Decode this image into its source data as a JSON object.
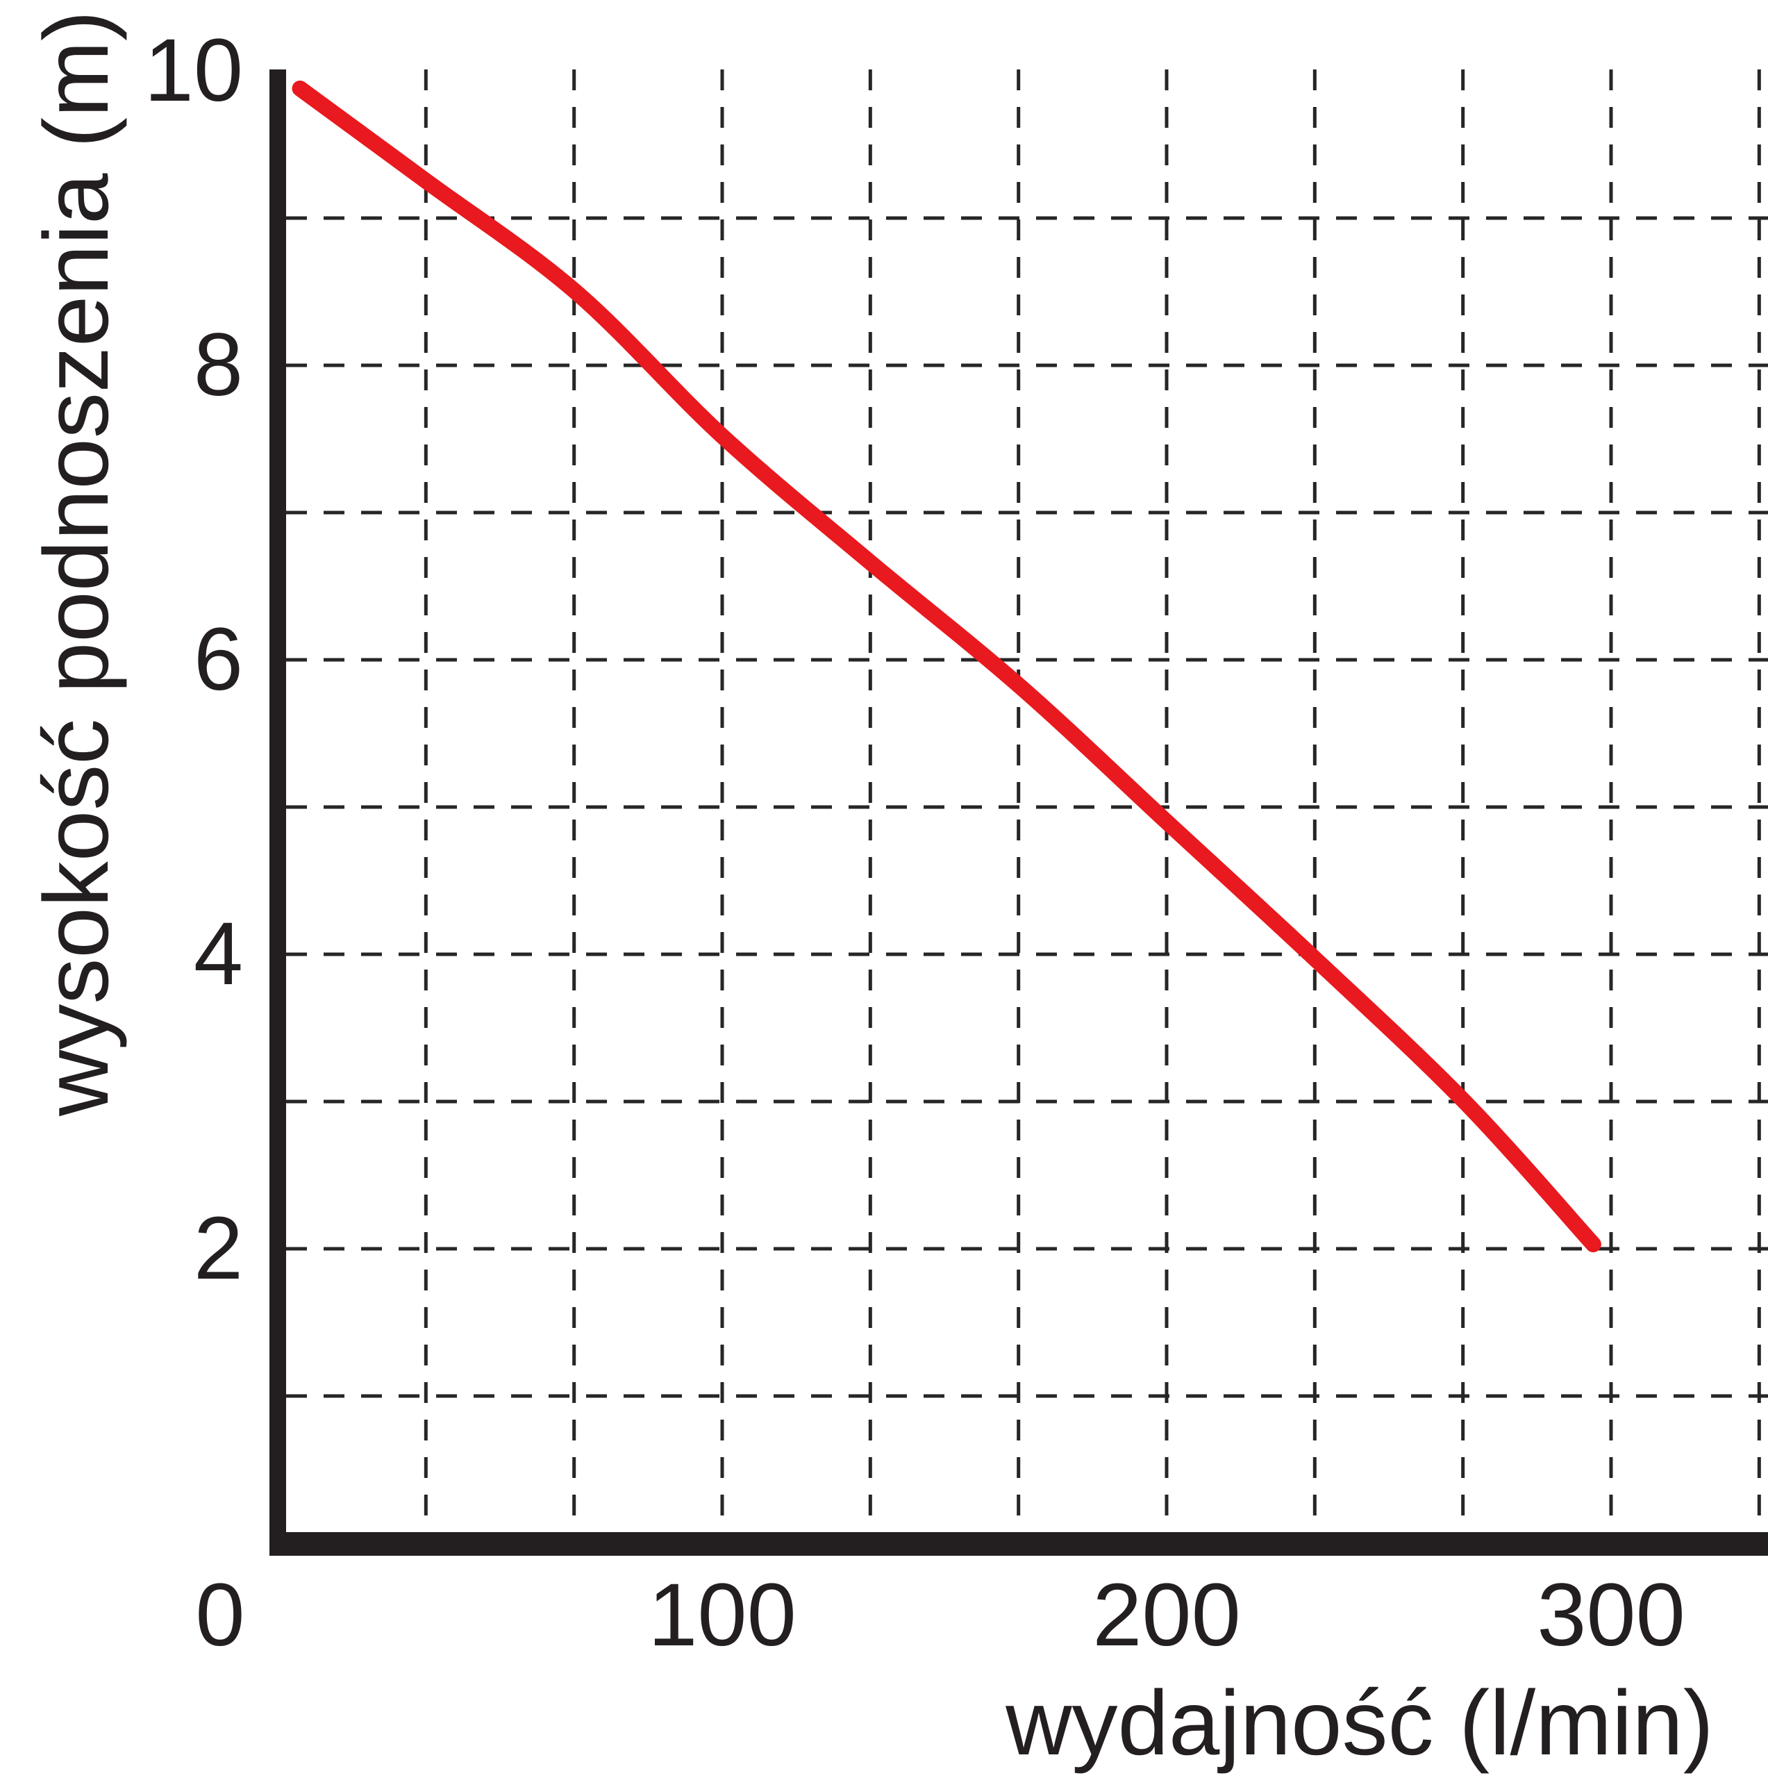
{
  "chart_data": {
    "type": "line",
    "title": "",
    "xlabel": "wydajność (l/min)",
    "ylabel": "wysokość podnoszenia (m)",
    "xlim": [
      0,
      333.3
    ],
    "ylim": [
      0,
      10
    ],
    "x_ticks": [
      {
        "value": 0,
        "label": "0"
      },
      {
        "value": 100,
        "label": "100"
      },
      {
        "value": 200,
        "label": "200"
      },
      {
        "value": 300,
        "label": "300"
      }
    ],
    "y_ticks": [
      {
        "value": 2,
        "label": "2"
      },
      {
        "value": 4,
        "label": "4"
      },
      {
        "value": 6,
        "label": "6"
      },
      {
        "value": 8,
        "label": "8"
      },
      {
        "value": 10,
        "label": "10"
      }
    ],
    "x_gridline_values": [
      33.33,
      66.67,
      100,
      133.33,
      166.67,
      200,
      233.33,
      266.67,
      300,
      333.33
    ],
    "y_gridline_values": [
      1,
      2,
      3,
      4,
      5,
      6,
      7,
      8,
      9
    ],
    "grid_style": "dashed",
    "legend_position": "none",
    "series": [
      {
        "name": "pump-head-vs-flow-curve",
        "color": "#e8191f",
        "points": [
          [
            5,
            9.88
          ],
          [
            33,
            9.26
          ],
          [
            67,
            8.5
          ],
          [
            100,
            7.52
          ],
          [
            133,
            6.67
          ],
          [
            167,
            5.82
          ],
          [
            200,
            4.9
          ],
          [
            233,
            3.98
          ],
          [
            267,
            3.0
          ],
          [
            296,
            2.03
          ]
        ]
      }
    ],
    "colors": {
      "axis": "#231f20",
      "grid": "#262626",
      "curve": "#e8191f",
      "background": "#ffffff",
      "text": "#231f20"
    }
  }
}
